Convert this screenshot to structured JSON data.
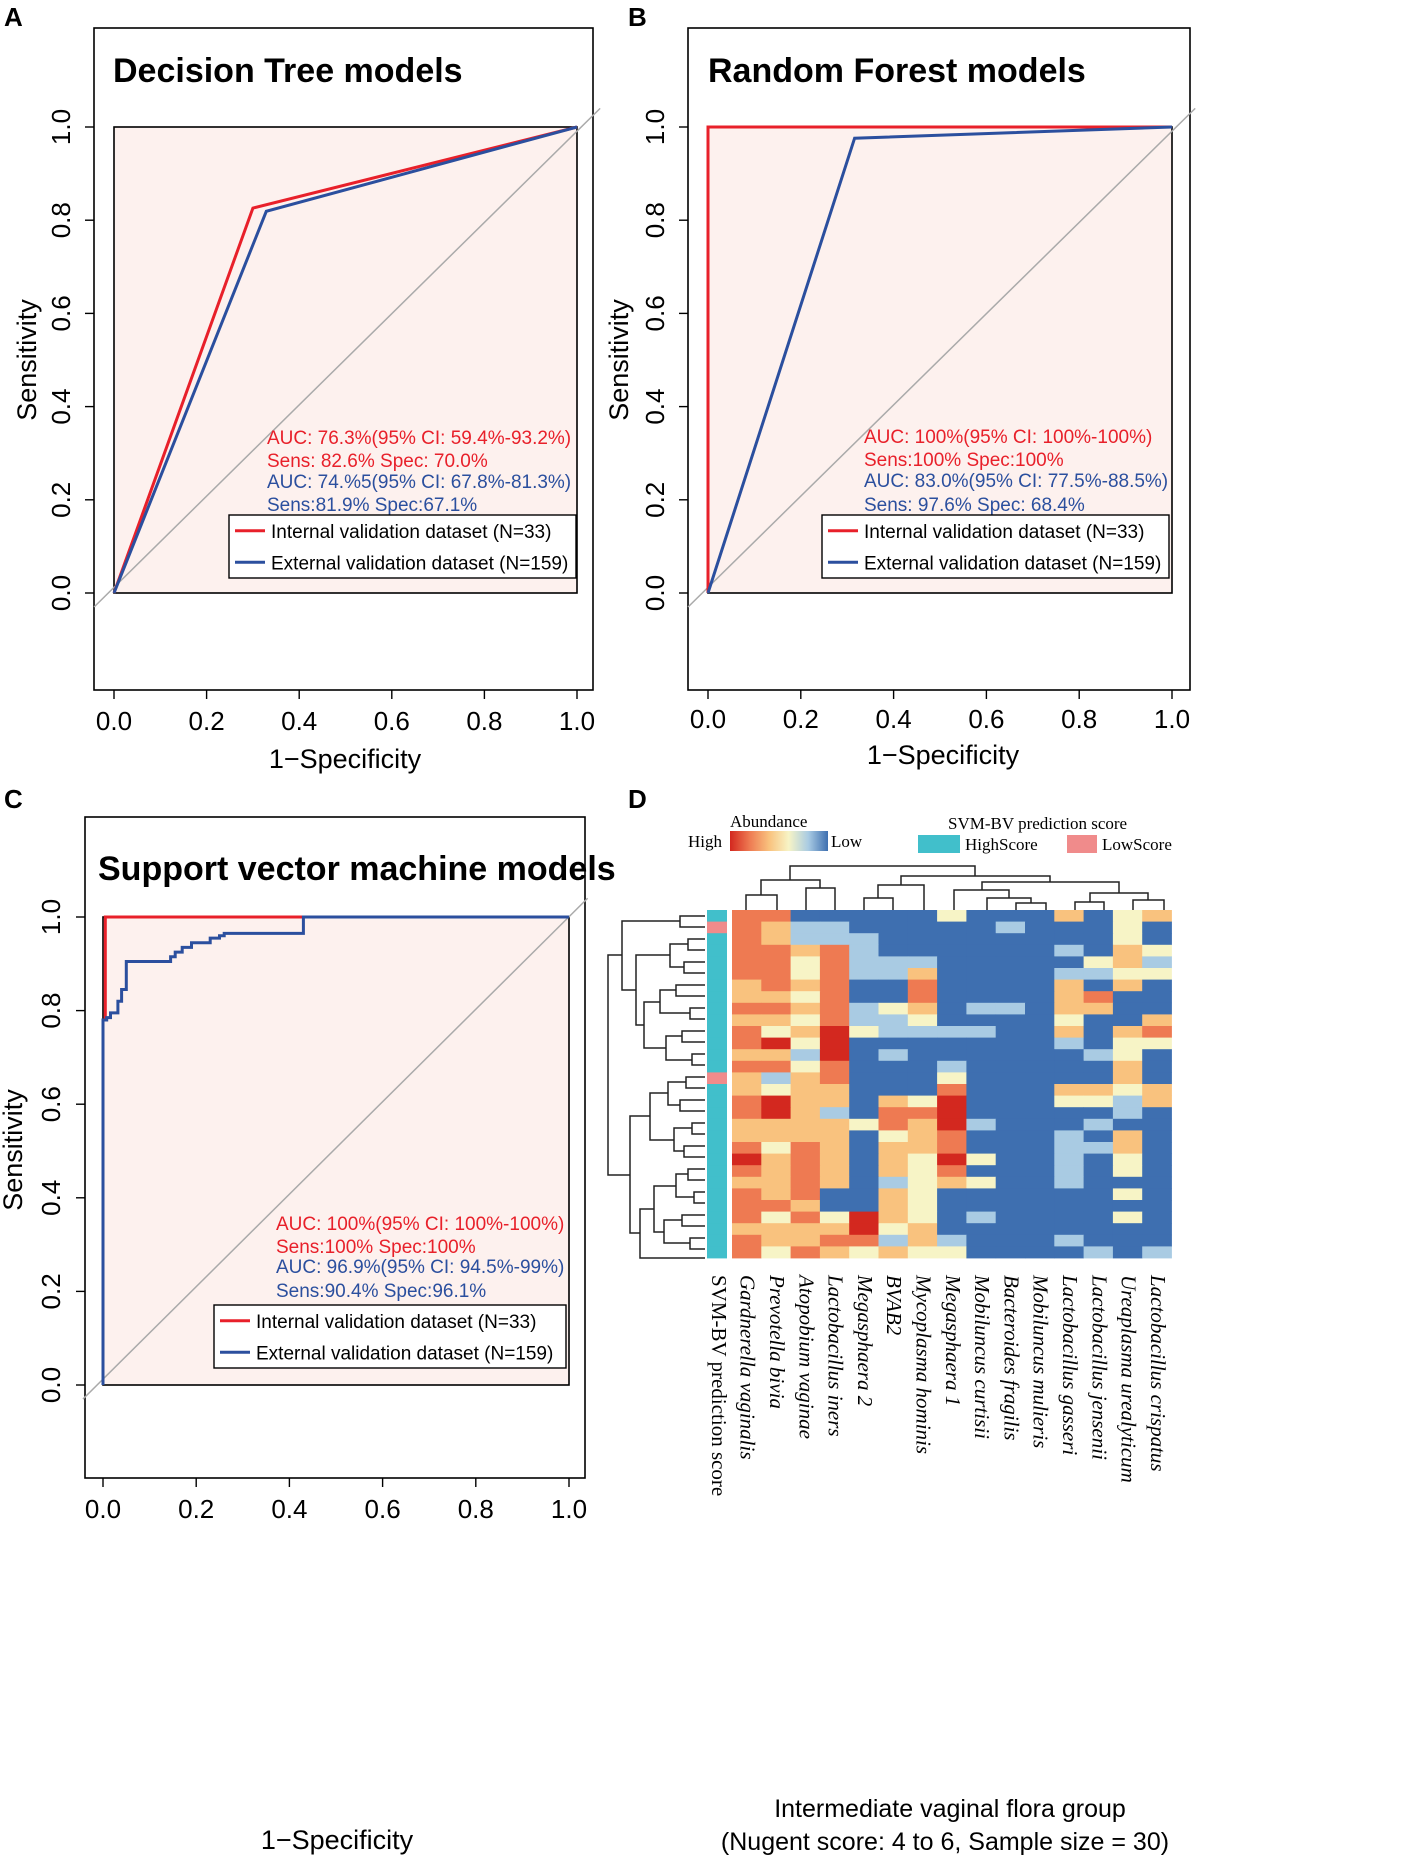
{
  "panels": {
    "A": {
      "letter": "A",
      "title": "Decision Tree models",
      "xlabel": "1−Specificity",
      "ylabel": "Sensitivity",
      "auc_lines": [
        {
          "text": "AUC: 76.3%(95% CI: 59.4%-93.2%)",
          "color": "red"
        },
        {
          "text": "Sens: 82.6%  Spec: 70.0%",
          "color": "red"
        },
        {
          "text": "AUC: 74.%5(95% CI: 67.8%-81.3%)",
          "color": "blue"
        },
        {
          "text": "Sens:81.9% Spec:67.1%",
          "color": "blue"
        }
      ],
      "legend": [
        "Internal validation dataset (N=33)",
        "External validation dataset (N=159)"
      ]
    },
    "B": {
      "letter": "B",
      "title": "Random Forest models",
      "xlabel": "1−Specificity",
      "ylabel": "Sensitivity",
      "auc_lines": [
        {
          "text": "AUC: 100%(95% CI: 100%-100%)",
          "color": "red"
        },
        {
          "text": "Sens:100% Spec:100%",
          "color": "red"
        },
        {
          "text": "AUC: 83.0%(95% CI: 77.5%-88.5%)",
          "color": "blue"
        },
        {
          "text": "Sens: 97.6% Spec: 68.4%",
          "color": "blue"
        }
      ],
      "legend": [
        "Internal validation dataset (N=33)",
        "External validation dataset (N=159)"
      ]
    },
    "C": {
      "letter": "C",
      "title": "Support vector machine models",
      "xlabel": "1−Specificity",
      "ylabel": "Sensitivity",
      "auc_lines": [
        {
          "text": "AUC: 100%(95% CI: 100%-100%)",
          "color": "red"
        },
        {
          "text": "Sens:100% Spec:100%",
          "color": "red"
        },
        {
          "text": "AUC: 96.9%(95% CI: 94.5%-99%)",
          "color": "blue"
        },
        {
          "text": "Sens:90.4% Spec:96.1%",
          "color": "blue"
        }
      ],
      "legend": [
        "Internal validation dataset (N=33)",
        "External validation dataset (N=159)"
      ]
    },
    "D": {
      "letter": "D",
      "abundance_title": "Abundance",
      "abundance_high": "High",
      "abundance_low": "Low",
      "score_title": "SVM-BV prediction score",
      "score_high": "HighScore",
      "score_low": "LowScore",
      "score_column_label": "SVM-BV prediction score",
      "xtitle_line1": "Intermediate vaginal flora group",
      "xtitle_line2": "(Nugent score: 4 to 6, Sample size = 30)"
    }
  },
  "colors": {
    "red": "#e8202a",
    "blue": "#2b4f9e",
    "fill": "#fdf1ee",
    "diag": "#aaaaaa",
    "high_score": "#41bfcb",
    "low_score": "#f08b8b"
  },
  "chart_data": [
    {
      "type": "line",
      "title": "Decision Tree models",
      "xlabel": "1−Specificity",
      "ylabel": "Sensitivity",
      "xlim": [
        0,
        1
      ],
      "ylim": [
        -0.22,
        1.2
      ],
      "xticks": [
        "0.0",
        "0.2",
        "0.4",
        "0.6",
        "0.8",
        "1.0"
      ],
      "yticks": [
        "0.0",
        "0.2",
        "0.4",
        "0.6",
        "0.8",
        "1.0"
      ],
      "series": [
        {
          "name": "Internal validation dataset (N=33)",
          "color": "red",
          "x": [
            0,
            0.3,
            1.0
          ],
          "y": [
            0,
            0.826,
            1.0
          ]
        },
        {
          "name": "External validation dataset (N=159)",
          "color": "blue",
          "x": [
            0,
            0.329,
            1.0
          ],
          "y": [
            0,
            0.819,
            1.0
          ]
        }
      ]
    },
    {
      "type": "line",
      "title": "Random Forest models",
      "xlabel": "1−Specificity",
      "ylabel": "Sensitivity",
      "xlim": [
        0,
        1
      ],
      "ylim": [
        -0.22,
        1.2
      ],
      "xticks": [
        "0.0",
        "0.2",
        "0.4",
        "0.6",
        "0.8",
        "1.0"
      ],
      "yticks": [
        "0.0",
        "0.2",
        "0.4",
        "0.6",
        "0.8",
        "1.0"
      ],
      "series": [
        {
          "name": "Internal validation dataset (N=33)",
          "color": "red",
          "x": [
            0,
            0,
            1.0
          ],
          "y": [
            0,
            1.0,
            1.0
          ]
        },
        {
          "name": "External validation dataset (N=159)",
          "color": "blue",
          "x": [
            0,
            0.316,
            1.0
          ],
          "y": [
            0,
            0.976,
            1.0
          ]
        }
      ]
    },
    {
      "type": "line",
      "title": "Support vector machine models",
      "xlabel": "1−Specificity",
      "ylabel": "Sensitivity",
      "xlim": [
        0,
        1
      ],
      "ylim": [
        -0.22,
        1.2
      ],
      "xticks": [
        "0.0",
        "0.2",
        "0.4",
        "0.6",
        "0.8",
        "1.0"
      ],
      "yticks": [
        "0.0",
        "0.2",
        "0.4",
        "0.6",
        "0.8",
        "1.0"
      ],
      "series": [
        {
          "name": "Internal validation dataset (N=33)",
          "color": "red",
          "x": [
            0,
            0,
            0.005,
            0.005,
            0.43,
            0.43,
            1.0
          ],
          "y": [
            0,
            0.78,
            0.78,
            1.0,
            1.0,
            1.0,
            1.0
          ]
        },
        {
          "name": "External validation dataset (N=159)",
          "color": "blue",
          "x": [
            0,
            0,
            0.008,
            0.008,
            0.016,
            0.016,
            0.032,
            0.032,
            0.04,
            0.04,
            0.05,
            0.05,
            0.145,
            0.145,
            0.155,
            0.155,
            0.17,
            0.17,
            0.19,
            0.19,
            0.23,
            0.23,
            0.25,
            0.25,
            0.26,
            0.26,
            0.43,
            0.43,
            1.0
          ],
          "y": [
            0,
            0.78,
            0.78,
            0.785,
            0.785,
            0.795,
            0.795,
            0.82,
            0.82,
            0.845,
            0.845,
            0.905,
            0.905,
            0.915,
            0.915,
            0.925,
            0.925,
            0.935,
            0.935,
            0.945,
            0.945,
            0.955,
            0.955,
            0.96,
            0.96,
            0.965,
            0.965,
            1.0,
            1.0
          ]
        }
      ]
    },
    {
      "type": "heatmap",
      "xlabel": "Intermediate vaginal flora group",
      "subtitle": "(Nugent score: 4 to 6, Sample size = 30)",
      "columns": [
        "Gardnerella vaginalis",
        "Prevotella bivia",
        "Atopobium vaginae",
        "Lactobacillus iners",
        "Megasphaera 2",
        "BVAB2",
        "Mycoplasma hominis",
        "Megasphaera 1",
        "Mobiluncus curtisii",
        "Bacteroides fragilis",
        "Mobiluncus mulieris",
        "Lactobacillus gasseri",
        "Lactobacillus jensenii",
        "Ureaplasma urealyticum",
        "Lactobacillus crispatus"
      ],
      "score_rows": [
        "High",
        "Low",
        "High",
        "High",
        "High",
        "High",
        "High",
        "High",
        "High",
        "High",
        "High",
        "High",
        "High",
        "High",
        "Low",
        "High",
        "High",
        "High",
        "High",
        "High",
        "High",
        "High",
        "High",
        "High",
        "High",
        "High",
        "High",
        "High",
        "High",
        "High"
      ],
      "value_scale": "0 = Low abundance, 5 = High abundance",
      "values": [
        [
          4,
          4,
          0,
          0,
          0,
          0,
          0,
          2,
          0,
          0,
          0,
          3,
          0,
          2,
          3
        ],
        [
          4,
          3,
          1,
          1,
          0,
          0,
          0,
          0,
          0,
          1,
          0,
          0,
          0,
          2,
          0
        ],
        [
          4,
          3,
          1,
          1,
          1,
          0,
          0,
          0,
          0,
          0,
          0,
          0,
          0,
          2,
          0
        ],
        [
          4,
          4,
          3,
          4,
          1,
          0,
          0,
          0,
          0,
          0,
          0,
          1,
          0,
          3,
          2
        ],
        [
          4,
          4,
          2,
          4,
          1,
          1,
          1,
          0,
          0,
          0,
          0,
          0,
          2,
          3,
          1
        ],
        [
          4,
          4,
          2,
          4,
          1,
          1,
          3,
          0,
          0,
          0,
          0,
          1,
          1,
          2,
          2
        ],
        [
          3,
          4,
          3,
          4,
          0,
          0,
          4,
          0,
          0,
          0,
          0,
          3,
          0,
          3,
          0
        ],
        [
          3,
          3,
          2,
          4,
          0,
          0,
          4,
          0,
          0,
          0,
          0,
          3,
          4,
          0,
          0
        ],
        [
          4,
          4,
          3,
          4,
          1,
          2,
          3,
          0,
          1,
          1,
          0,
          3,
          3,
          0,
          0
        ],
        [
          3,
          3,
          2,
          4,
          1,
          1,
          2,
          0,
          0,
          0,
          0,
          2,
          0,
          0,
          3
        ],
        [
          4,
          2,
          3,
          5,
          2,
          1,
          1,
          1,
          1,
          0,
          0,
          3,
          0,
          3,
          4
        ],
        [
          4,
          5,
          2,
          5,
          0,
          0,
          0,
          0,
          0,
          0,
          0,
          1,
          0,
          2,
          2
        ],
        [
          3,
          3,
          1,
          5,
          0,
          1,
          0,
          0,
          0,
          0,
          0,
          0,
          1,
          2,
          0
        ],
        [
          4,
          4,
          2,
          4,
          0,
          0,
          0,
          1,
          0,
          0,
          0,
          0,
          0,
          3,
          0
        ],
        [
          3,
          1,
          3,
          4,
          0,
          0,
          0,
          2,
          0,
          0,
          0,
          0,
          0,
          3,
          0
        ],
        [
          3,
          2,
          3,
          3,
          0,
          0,
          0,
          4,
          0,
          0,
          0,
          3,
          3,
          2,
          3
        ],
        [
          4,
          5,
          3,
          3,
          0,
          3,
          2,
          5,
          0,
          0,
          0,
          2,
          2,
          1,
          3
        ],
        [
          4,
          5,
          3,
          1,
          0,
          4,
          4,
          5,
          0,
          0,
          0,
          0,
          0,
          1,
          0
        ],
        [
          3,
          3,
          3,
          3,
          2,
          4,
          3,
          5,
          1,
          0,
          0,
          0,
          1,
          0,
          0
        ],
        [
          3,
          3,
          3,
          3,
          0,
          2,
          3,
          4,
          0,
          0,
          0,
          1,
          0,
          3,
          0
        ],
        [
          4,
          2,
          4,
          3,
          0,
          3,
          3,
          4,
          0,
          0,
          0,
          1,
          1,
          3,
          0
        ],
        [
          5,
          3,
          4,
          3,
          0,
          3,
          2,
          5,
          2,
          0,
          0,
          1,
          0,
          2,
          0
        ],
        [
          4,
          3,
          4,
          3,
          0,
          3,
          2,
          4,
          0,
          0,
          0,
          1,
          0,
          2,
          0
        ],
        [
          3,
          3,
          4,
          3,
          0,
          1,
          2,
          3,
          2,
          0,
          0,
          1,
          0,
          0,
          0
        ],
        [
          4,
          3,
          4,
          0,
          0,
          3,
          2,
          0,
          0,
          0,
          0,
          0,
          0,
          2,
          0
        ],
        [
          4,
          4,
          3,
          0,
          0,
          3,
          2,
          0,
          0,
          0,
          0,
          0,
          0,
          0,
          0
        ],
        [
          4,
          2,
          4,
          2,
          5,
          3,
          2,
          0,
          1,
          0,
          0,
          0,
          0,
          2,
          0
        ],
        [
          3,
          3,
          3,
          3,
          5,
          2,
          3,
          0,
          0,
          0,
          0,
          0,
          0,
          0,
          0
        ],
        [
          4,
          3,
          3,
          4,
          4,
          1,
          3,
          1,
          0,
          0,
          0,
          1,
          0,
          0,
          0
        ],
        [
          4,
          2,
          4,
          3,
          2,
          3,
          2,
          2,
          0,
          0,
          0,
          0,
          1,
          0,
          1
        ]
      ]
    }
  ]
}
